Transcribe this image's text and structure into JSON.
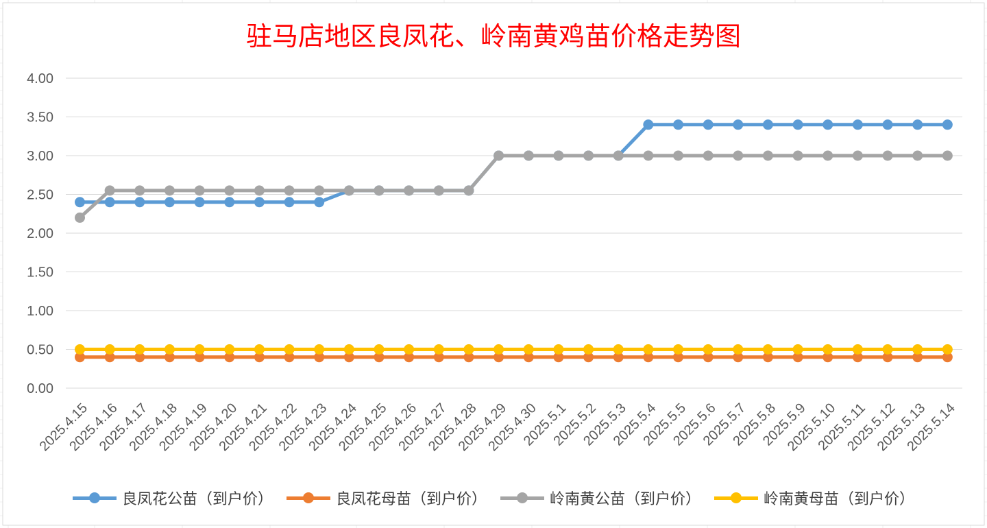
{
  "chart_data": {
    "type": "line",
    "title": "驻马店地区良凤花、岭南黄鸡苗价格走势图",
    "categories": [
      "2025.4.15",
      "2025.4.16",
      "2025.4.17",
      "2025.4.18",
      "2025.4.19",
      "2025.4.20",
      "2025.4.21",
      "2025.4.22",
      "2025.4.23",
      "2025.4.24",
      "2025.4.25",
      "2025.4.26",
      "2025.4.27",
      "2025.4.28",
      "2025.4.29",
      "2025.4.30",
      "2025.5.1",
      "2025.5.2",
      "2025.5.3",
      "2025.5.4",
      "2025.5.5",
      "2025.5.6",
      "2025.5.7",
      "2025.5.8",
      "2025.5.9",
      "2025.5.10",
      "2025.5.11",
      "2025.5.12",
      "2025.5.13",
      "2025.5.14"
    ],
    "series": [
      {
        "name": "良凤花公苗（到户价）",
        "color": "#5b9bd5",
        "values": [
          2.4,
          2.4,
          2.4,
          2.4,
          2.4,
          2.4,
          2.4,
          2.4,
          2.4,
          2.55,
          2.55,
          2.55,
          2.55,
          2.55,
          3.0,
          3.0,
          3.0,
          3.0,
          3.0,
          3.4,
          3.4,
          3.4,
          3.4,
          3.4,
          3.4,
          3.4,
          3.4,
          3.4,
          3.4,
          3.4
        ]
      },
      {
        "name": "良凤花母苗（到户价）",
        "color": "#ed7d31",
        "values": [
          0.4,
          0.4,
          0.4,
          0.4,
          0.4,
          0.4,
          0.4,
          0.4,
          0.4,
          0.4,
          0.4,
          0.4,
          0.4,
          0.4,
          0.4,
          0.4,
          0.4,
          0.4,
          0.4,
          0.4,
          0.4,
          0.4,
          0.4,
          0.4,
          0.4,
          0.4,
          0.4,
          0.4,
          0.4,
          0.4
        ]
      },
      {
        "name": "岭南黄公苗（到户价）",
        "color": "#a5a5a5",
        "values": [
          2.2,
          2.55,
          2.55,
          2.55,
          2.55,
          2.55,
          2.55,
          2.55,
          2.55,
          2.55,
          2.55,
          2.55,
          2.55,
          2.55,
          3.0,
          3.0,
          3.0,
          3.0,
          3.0,
          3.0,
          3.0,
          3.0,
          3.0,
          3.0,
          3.0,
          3.0,
          3.0,
          3.0,
          3.0,
          3.0
        ]
      },
      {
        "name": "岭南黄母苗（到户价）",
        "color": "#ffc000",
        "values": [
          0.5,
          0.5,
          0.5,
          0.5,
          0.5,
          0.5,
          0.5,
          0.5,
          0.5,
          0.5,
          0.5,
          0.5,
          0.5,
          0.5,
          0.5,
          0.5,
          0.5,
          0.5,
          0.5,
          0.5,
          0.5,
          0.5,
          0.5,
          0.5,
          0.5,
          0.5,
          0.5,
          0.5,
          0.5,
          0.5
        ]
      }
    ],
    "y_ticks": [
      "0.00",
      "0.50",
      "1.00",
      "1.50",
      "2.00",
      "2.50",
      "3.00",
      "3.50",
      "4.00"
    ],
    "ylim": [
      0,
      4
    ],
    "grid": true,
    "legend_position": "bottom"
  }
}
